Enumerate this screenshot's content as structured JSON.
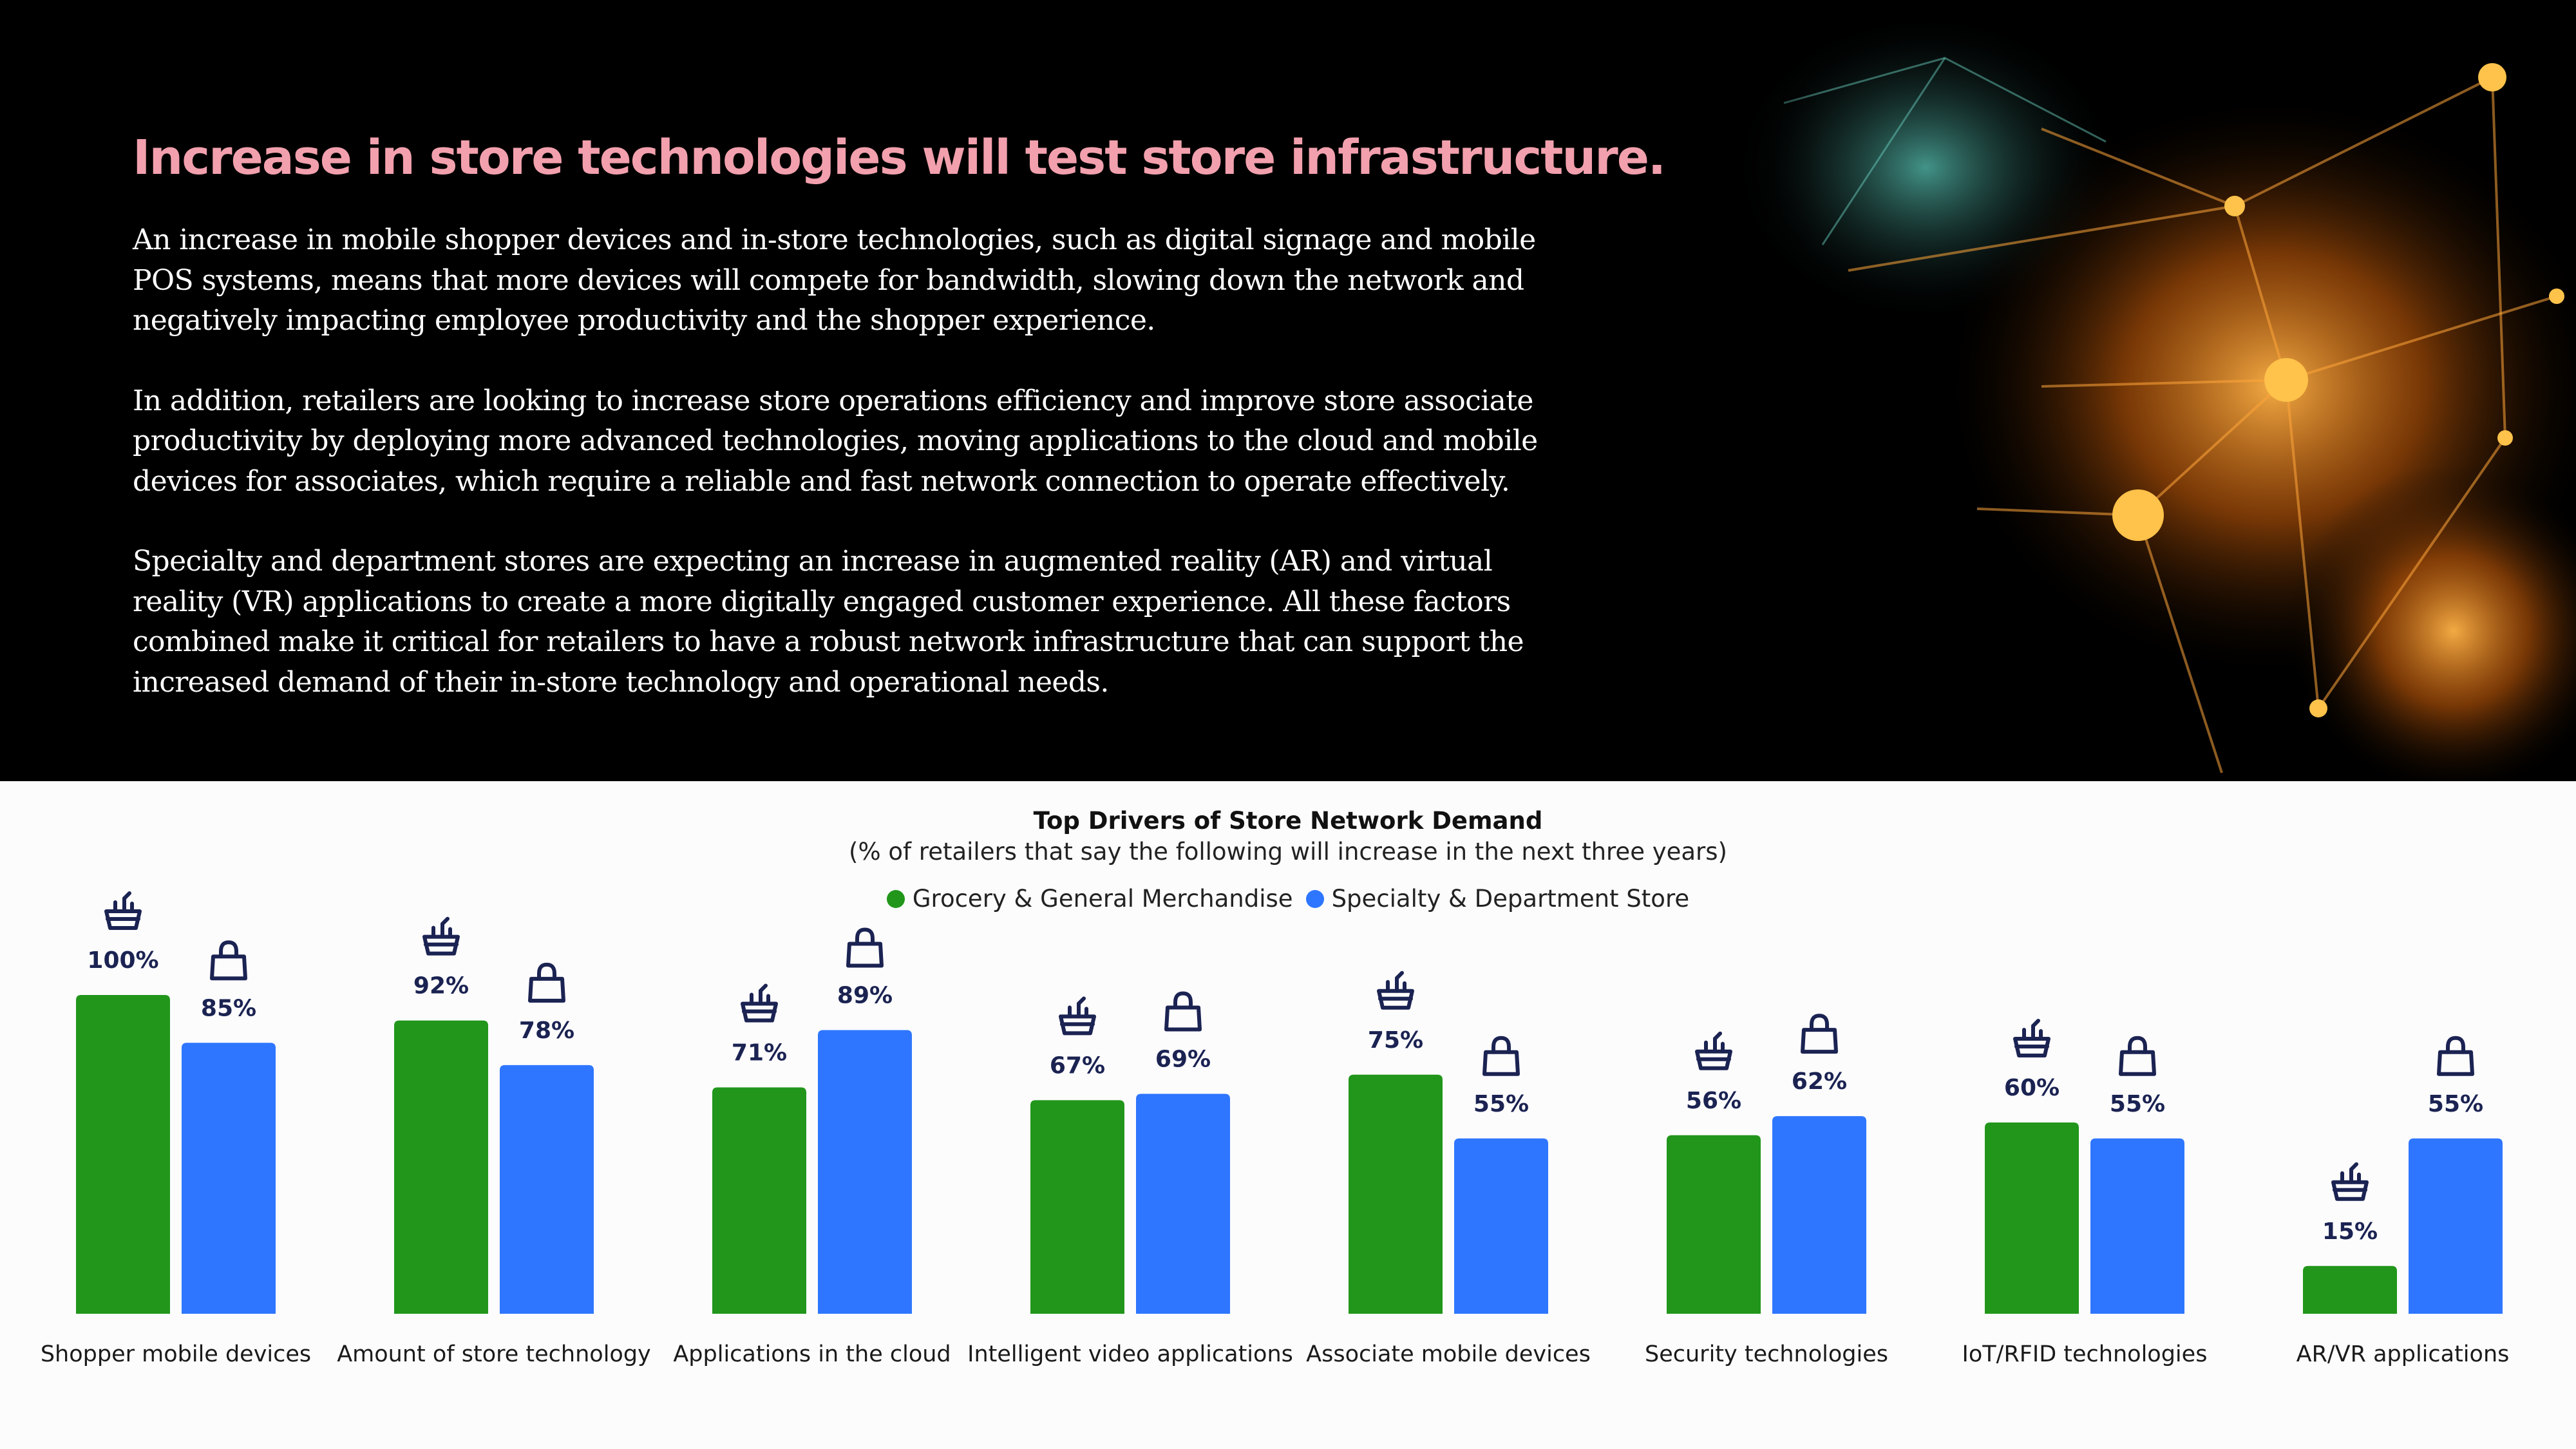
{
  "headline": "Increase in store technologies will test store infrastructure.",
  "paragraphs": [
    "An increase in mobile shopper devices and in-store technologies, such as digital signage and mobile POS systems, means that more devices will compete for bandwidth, slowing down the network and negatively impacting employee productivity and the shopper experience.",
    "In addition, retailers are looking to increase store operations efficiency and improve store associate productivity by deploying more advanced technologies, moving applications to the cloud and mobile devices for associates, which require a reliable and fast network connection to operate effectively.",
    "Specialty and department stores are expecting an increase in augmented reality (AR) and virtual reality (VR) applications to create a more digitally engaged customer experience.  All these factors combined make it critical for retailers to have a robust network infrastructure that can support the increased demand of their in-store technology and operational needs."
  ],
  "colors": {
    "grocery": "#21961b",
    "specialty": "#2e76ff",
    "label": "#1b2352",
    "headline": "#f2a0ad"
  },
  "icons": {
    "grocery": "grocery-basket-icon",
    "specialty": "shopping-bag-icon"
  },
  "chart_data": {
    "type": "bar",
    "title": "Top Drivers of Store Network Demand",
    "subtitle": "(% of retailers that say the following will increase in the next three years)",
    "categories": [
      "Shopper mobile devices",
      "Amount of store technology",
      "Applications in the cloud",
      "Intelligent video applications",
      "Associate mobile devices",
      "Security technologies",
      "IoT/RFID technologies",
      "AR/VR applications"
    ],
    "series": [
      {
        "name": "Grocery & General Merchandise",
        "values": [
          100,
          92,
          71,
          67,
          75,
          56,
          60,
          15
        ],
        "labels": [
          "100%",
          "92%",
          "71%",
          "67%",
          "75%",
          "56%",
          "60%",
          "15%"
        ]
      },
      {
        "name": "Specialty & Department Store",
        "values": [
          85,
          78,
          89,
          69,
          55,
          62,
          55,
          55
        ],
        "labels": [
          "85%",
          "78%",
          "89%",
          "69%",
          "55%",
          "62%",
          "55%",
          "55%"
        ]
      }
    ],
    "ylim": [
      0,
      100
    ],
    "legend": "top-center",
    "grid": false
  }
}
